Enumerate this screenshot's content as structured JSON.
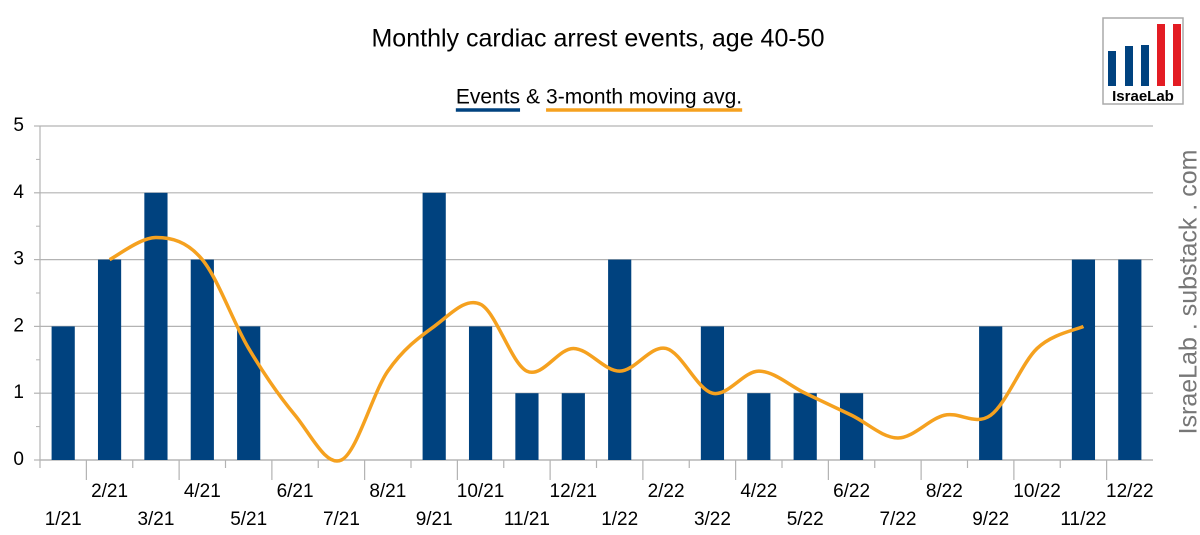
{
  "chart_data": {
    "type": "bar",
    "title": "Monthly cardiac arrest events, age 40-50",
    "legend_joiner": "&",
    "logo": "IsraeLab",
    "watermark": "IsraeLab . substack . com",
    "categories": [
      "1/21",
      "2/21",
      "3/21",
      "4/21",
      "5/21",
      "6/21",
      "7/21",
      "8/21",
      "9/21",
      "10/21",
      "11/21",
      "12/21",
      "1/22",
      "2/22",
      "3/22",
      "4/22",
      "5/22",
      "6/22",
      "7/22",
      "8/22",
      "9/22",
      "10/22",
      "11/22",
      "12/22"
    ],
    "series": [
      {
        "name": "Events",
        "type": "bar",
        "color": "#00427f",
        "values": [
          2,
          3,
          4,
          3,
          2,
          0,
          0,
          0,
          4,
          2,
          1,
          1,
          3,
          0,
          2,
          1,
          1,
          1,
          0,
          0,
          2,
          0,
          3,
          3
        ]
      },
      {
        "name": "3-month moving avg.",
        "type": "line",
        "smooth": true,
        "color": "#f5a11f",
        "values": [
          null,
          3,
          3.33,
          3,
          1.67,
          0.67,
          0,
          1.33,
          2,
          2.33,
          1.33,
          1.67,
          1.33,
          1.67,
          1,
          1.33,
          1,
          0.67,
          0.33,
          0.67,
          0.67,
          1.67,
          2,
          null
        ]
      }
    ],
    "ylim": [
      0,
      5
    ],
    "yticks": [
      0,
      1,
      2,
      3,
      4,
      5
    ],
    "grid": true
  }
}
